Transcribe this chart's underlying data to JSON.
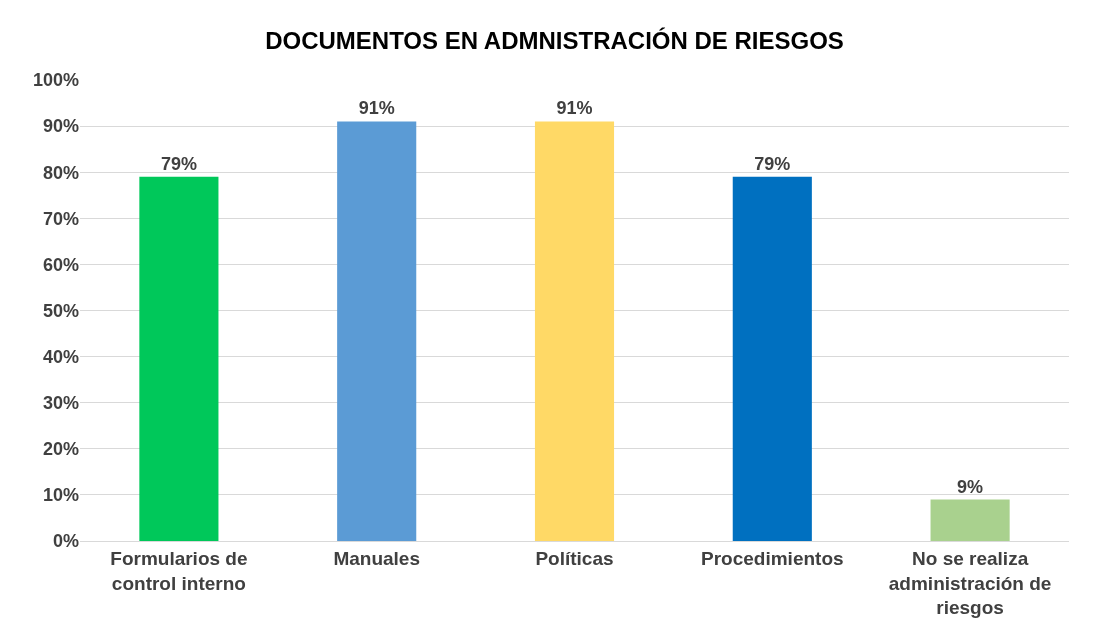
{
  "chart_data": {
    "type": "bar",
    "title": "DOCUMENTOS EN ADMNISTRACIÓN DE RIESGOS",
    "categories": [
      "Formularios de control interno",
      "Manuales",
      "Políticas",
      "Procedimientos",
      "No se realiza administración de riesgos"
    ],
    "values": [
      79,
      91,
      91,
      79,
      9
    ],
    "colors": [
      "#00c85a",
      "#5b9bd5",
      "#ffd966",
      "#0070c0",
      "#a9d18e"
    ],
    "value_labels": [
      "79%",
      "91%",
      "91%",
      "79%",
      "9%"
    ],
    "ylim": [
      0,
      100
    ],
    "yticks": [
      {
        "value": 0,
        "label": "0%"
      },
      {
        "value": 10,
        "label": "10%"
      },
      {
        "value": 20,
        "label": "20%"
      },
      {
        "value": 30,
        "label": "30%"
      },
      {
        "value": 40,
        "label": "40%"
      },
      {
        "value": 50,
        "label": "50%"
      },
      {
        "value": 60,
        "label": "60%"
      },
      {
        "value": 70,
        "label": "70%"
      },
      {
        "value": 80,
        "label": "80%"
      },
      {
        "value": 90,
        "label": "90%"
      },
      {
        "value": 100,
        "label": "100%"
      }
    ],
    "grid": "y"
  }
}
